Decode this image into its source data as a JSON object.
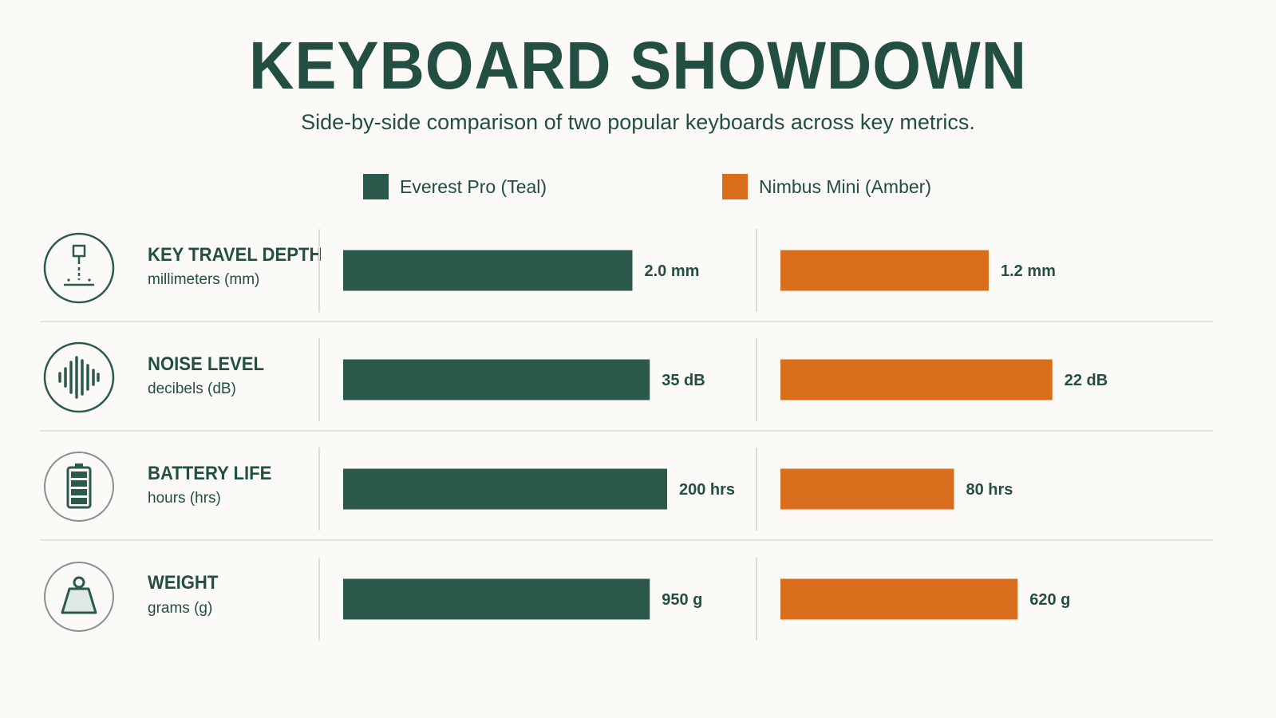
{
  "title": "KEYBOARD SHOWDOWN",
  "subtitle": "Side-by-side comparison of two popular keyboards across key metrics.",
  "colors": {
    "teal": "#2b5a4c",
    "amber": "#d96f1c",
    "text": "#234f43",
    "divider": "#dddcd6"
  },
  "chart_data": {
    "type": "bar",
    "title": "KEYBOARD SHOWDOWN",
    "subtitle": "Side-by-side comparison of two popular keyboards across key metrics.",
    "legend": [
      "Everest Pro (Teal)",
      "Nimbus Mini (Amber)"
    ],
    "series": [
      {
        "name": "Everest Pro (Teal)",
        "color": "#2b5a4c",
        "values": [
          2.0,
          35,
          200,
          950
        ],
        "labels": [
          "2.0 mm",
          "35 dB",
          "200 hrs",
          "950 g"
        ],
        "fractions": [
          0.5,
          0.53,
          0.56,
          0.53
        ]
      },
      {
        "name": "Nimbus Mini (Amber)",
        "color": "#d96f1c",
        "values": [
          1.2,
          22,
          80,
          620
        ],
        "labels": [
          "1.2 mm",
          "22 dB",
          "80 hrs",
          "620 g"
        ],
        "fractions": [
          0.36,
          0.47,
          0.3,
          0.41
        ]
      }
    ],
    "metrics": [
      {
        "name": "KEY TRAVEL DEPTH",
        "unit": "millimeters (mm)",
        "icon": "key-travel-icon"
      },
      {
        "name": "NOISE LEVEL",
        "unit": "decibels (dB)",
        "icon": "sound-wave-icon"
      },
      {
        "name": "BATTERY LIFE",
        "unit": "hours (hrs)",
        "icon": "battery-icon"
      },
      {
        "name": "WEIGHT",
        "unit": "grams (g)",
        "icon": "weight-icon"
      }
    ],
    "grid": false,
    "legend_position": "top-center"
  }
}
